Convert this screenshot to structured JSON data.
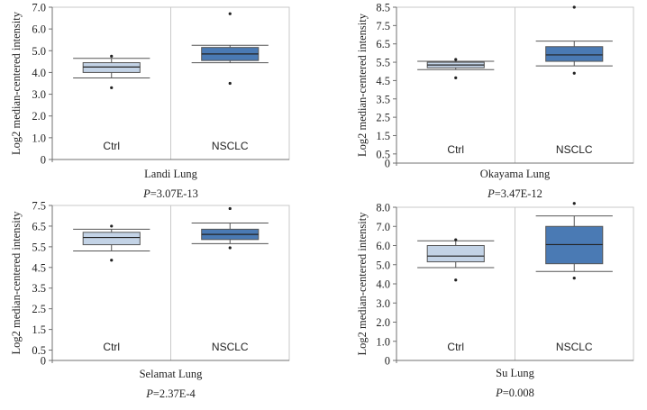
{
  "chart_data": [
    {
      "type": "box",
      "title": "Landi Lung",
      "p_prefix": "P",
      "p_value": "=3.07E-13",
      "ylabel": "Log2 median-centered intensity",
      "ylim": [
        0,
        7.0
      ],
      "yticks": [
        0,
        1.0,
        2.0,
        3.0,
        4.0,
        5.0,
        6.0,
        7.0
      ],
      "ytick_labels": [
        "0",
        "1.0",
        "2.0",
        "3.0",
        "4.0",
        "5.0",
        "6.0",
        "7.0"
      ],
      "categories": [
        "Ctrl",
        "NSCLC"
      ],
      "boxes": [
        {
          "name": "Ctrl",
          "min": 3.75,
          "q1": 4.0,
          "median": 4.25,
          "q3": 4.45,
          "max": 4.65,
          "outliers": [
            3.3,
            4.75
          ],
          "color": "#c3d3e6"
        },
        {
          "name": "NSCLC",
          "min": 4.45,
          "q1": 4.55,
          "median": 4.85,
          "q3": 5.15,
          "max": 5.25,
          "outliers": [
            3.5,
            6.7
          ],
          "color": "#4a7ab4"
        }
      ]
    },
    {
      "type": "box",
      "title": "Okayama Lung",
      "p_prefix": "P",
      "p_value": "=3.47E-12",
      "ylabel": "Log2 median-centered intensity",
      "ylim": [
        0,
        8.5
      ],
      "yticks": [
        0,
        0.5,
        1.5,
        2.5,
        3.5,
        4.5,
        5.5,
        6.5,
        7.5,
        8.5
      ],
      "ytick_labels": [
        "0",
        "0.5",
        "1.5",
        "2.5",
        "3.5",
        "4.5",
        "5.5",
        "6.5",
        "7.5",
        "8.5"
      ],
      "categories": [
        "Ctrl",
        "NSCLC"
      ],
      "boxes": [
        {
          "name": "Ctrl",
          "min": 5.1,
          "q1": 5.2,
          "median": 5.35,
          "q3": 5.5,
          "max": 5.55,
          "outliers": [
            4.65,
            5.65
          ],
          "color": "#c3d3e6"
        },
        {
          "name": "NSCLC",
          "min": 5.3,
          "q1": 5.55,
          "median": 5.9,
          "q3": 6.35,
          "max": 6.65,
          "outliers": [
            4.9,
            8.5
          ],
          "color": "#4a7ab4"
        }
      ]
    },
    {
      "type": "box",
      "title": "Selamat Lung",
      "p_prefix": "P",
      "p_value": "=2.37E-4",
      "ylabel": "Log2 median-centered intensity",
      "ylim": [
        0,
        7.5
      ],
      "yticks": [
        0,
        0.5,
        1.5,
        2.5,
        3.5,
        4.5,
        5.5,
        6.5,
        7.5
      ],
      "ytick_labels": [
        "0",
        "0.5",
        "1.5",
        "2.5",
        "3.5",
        "4.5",
        "5.5",
        "6.5",
        "7.5"
      ],
      "categories": [
        "Ctrl",
        "NSCLC"
      ],
      "boxes": [
        {
          "name": "Ctrl",
          "min": 5.3,
          "q1": 5.6,
          "median": 5.95,
          "q3": 6.2,
          "max": 6.35,
          "outliers": [
            4.85,
            6.5
          ],
          "color": "#c3d3e6"
        },
        {
          "name": "NSCLC",
          "min": 5.65,
          "q1": 5.85,
          "median": 6.1,
          "q3": 6.35,
          "max": 6.65,
          "outliers": [
            5.45,
            7.35
          ],
          "color": "#4a7ab4"
        }
      ]
    },
    {
      "type": "box",
      "title": "Su Lung",
      "p_prefix": "P",
      "p_value": "=0.008",
      "ylabel": "Log2 median-centered intensity",
      "ylim": [
        0,
        8.0
      ],
      "yticks": [
        0,
        1.0,
        2.0,
        3.0,
        4.0,
        5.0,
        6.0,
        7.0,
        8.0
      ],
      "ytick_labels": [
        "0",
        "1.0",
        "2.0",
        "3.0",
        "4.0",
        "5.0",
        "6.0",
        "7.0",
        "8.0"
      ],
      "categories": [
        "Ctrl",
        "NSCLC"
      ],
      "boxes": [
        {
          "name": "Ctrl",
          "min": 4.85,
          "q1": 5.15,
          "median": 5.45,
          "q3": 6.0,
          "max": 6.25,
          "outliers": [
            4.2,
            6.3
          ],
          "color": "#c3d3e6"
        },
        {
          "name": "NSCLC",
          "min": 4.65,
          "q1": 5.05,
          "median": 6.05,
          "q3": 7.0,
          "max": 7.55,
          "outliers": [
            4.3,
            8.2
          ],
          "color": "#4a7ab4"
        }
      ]
    }
  ]
}
